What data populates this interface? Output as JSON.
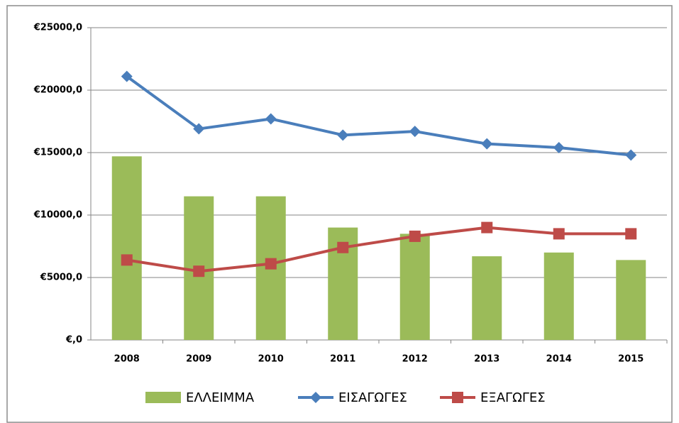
{
  "chart_data": {
    "type": "combo",
    "categories": [
      "2008",
      "2009",
      "2010",
      "2011",
      "2012",
      "2013",
      "2014",
      "2015"
    ],
    "series": [
      {
        "name": "ΕΛΛΕΙΜΜΑ",
        "type": "bar",
        "color": "#9bbb59",
        "values": [
          14700,
          11500,
          11500,
          9000,
          8500,
          6700,
          7000,
          6400
        ]
      },
      {
        "name": "ΕΙΣΑΓΩΓΕΣ",
        "type": "line",
        "marker": "diamond",
        "color": "#4a7ebb",
        "values": [
          21100,
          16900,
          17700,
          16400,
          16700,
          15700,
          15400,
          14800
        ]
      },
      {
        "name": "ΕΞΑΓΩΓΕΣ",
        "type": "line",
        "marker": "square",
        "color": "#be4b48",
        "values": [
          6400,
          5500,
          6100,
          7400,
          8300,
          9000,
          8500,
          8500
        ]
      }
    ],
    "ylim": [
      0,
      25000
    ],
    "yticks": [
      {
        "value": 0,
        "label": "€,0"
      },
      {
        "value": 5000,
        "label": "€5000,0"
      },
      {
        "value": 10000,
        "label": "€10000,0"
      },
      {
        "value": 15000,
        "label": "€15000,0"
      },
      {
        "value": 20000,
        "label": "€20000,0"
      },
      {
        "value": 25000,
        "label": "€25000,0"
      }
    ],
    "grid": true,
    "legend": "bottom"
  }
}
